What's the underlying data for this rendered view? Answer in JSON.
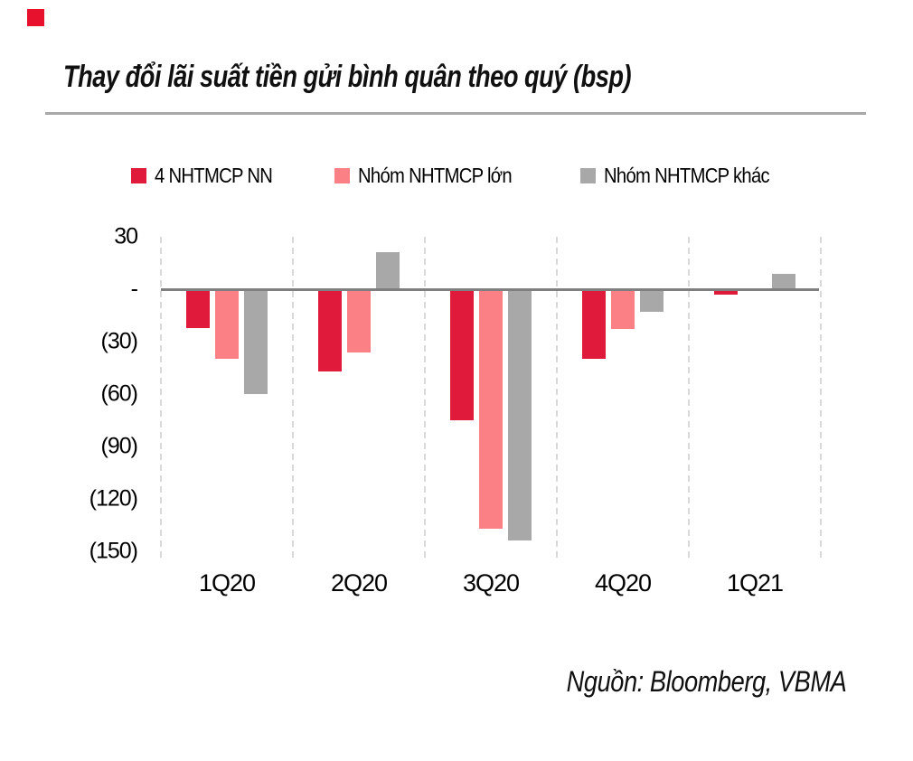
{
  "page": {
    "title": "Thay đổi lãi suất tiền gửi bình quân theo quý (bsp)",
    "source_label": "Nguồn: Bloomberg, VBMA"
  },
  "logo": {
    "color": "#e8112d"
  },
  "chart_data": {
    "type": "bar",
    "title": "Thay đổi lãi suất tiền gửi bình quân theo quý (bsp)",
    "unit": "bsp",
    "categories": [
      "1Q20",
      "2Q20",
      "3Q20",
      "4Q20",
      "1Q21"
    ],
    "series": [
      {
        "name": "4 NHTMCP NN",
        "color": "#e01a3b",
        "values": [
          -22,
          -47,
          -75,
          -40,
          -3
        ]
      },
      {
        "name": "Nhóm NHTMCP lớn",
        "color": "#fa8085",
        "values": [
          -40,
          -36,
          -137,
          -23,
          0
        ]
      },
      {
        "name": "Nhóm NHTMCP khác",
        "color": "#a8a8a8",
        "values": [
          -60,
          21,
          -144,
          -13,
          9
        ]
      }
    ],
    "yticks": [
      {
        "v": 30,
        "label": "30"
      },
      {
        "v": 0,
        "label": "-"
      },
      {
        "v": -30,
        "label": "(30)"
      },
      {
        "v": -60,
        "label": "(60)"
      },
      {
        "v": -90,
        "label": "(90)"
      },
      {
        "v": -120,
        "label": "(120)"
      },
      {
        "v": -150,
        "label": "(150)"
      }
    ],
    "ylim": [
      -154,
      30
    ],
    "xlabel": "",
    "ylabel": "",
    "legend_position": "top",
    "grid": "vertical-dashed",
    "zero_line_color": "#7f7f7f",
    "gridline_color": "#d9d9d9"
  }
}
